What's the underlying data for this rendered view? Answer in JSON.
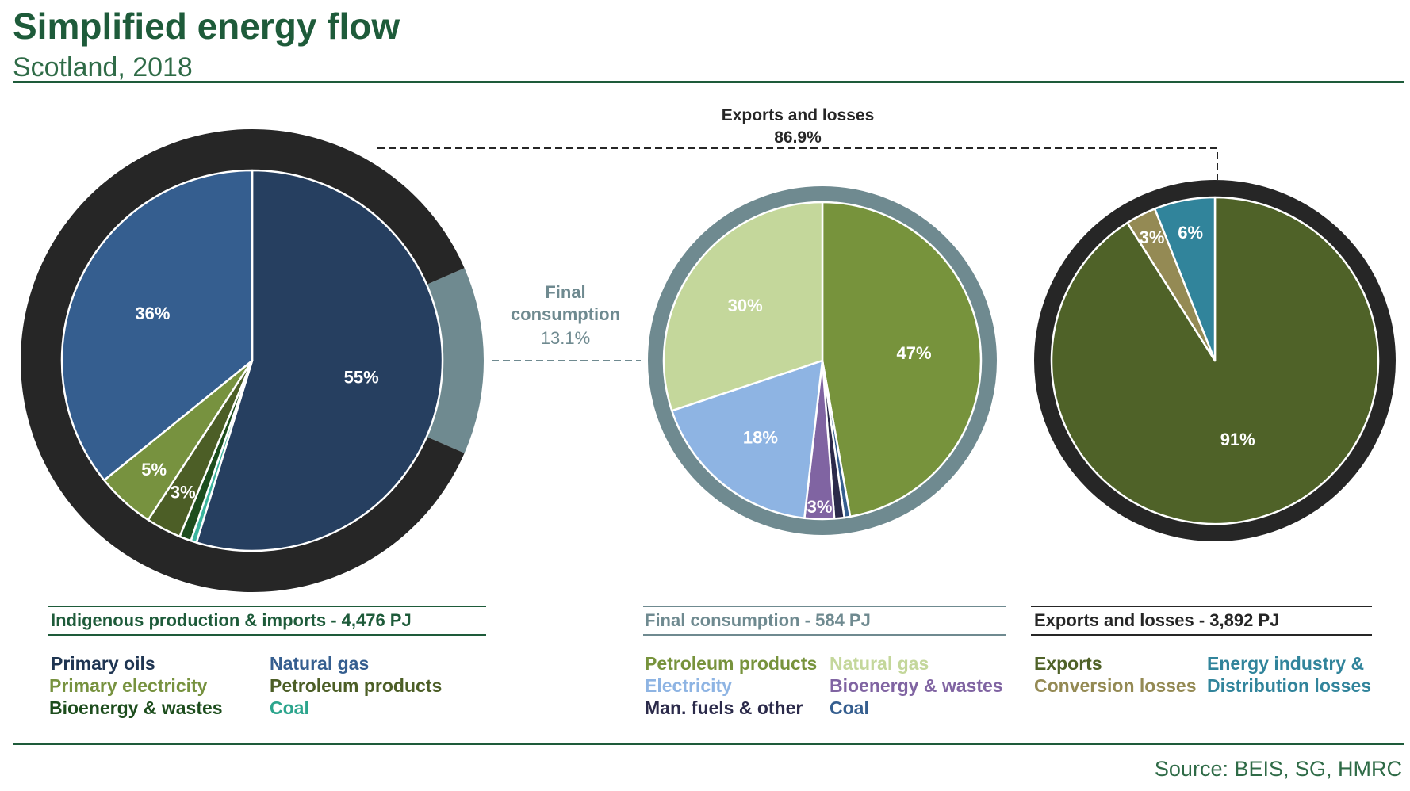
{
  "header": {
    "title": "Simplified energy flow",
    "subtitle": "Scotland, 2018",
    "source": "Source: BEIS, SG, HMRC"
  },
  "chart_data": [
    {
      "type": "pie",
      "title": "Indigenous production & imports - 4,476 PJ",
      "slices": [
        {
          "label": "Natural gas",
          "value": 55,
          "display": "55%",
          "color": "#263f60"
        },
        {
          "label": "Coal",
          "value": 0.5,
          "display": "",
          "color": "#3bb59e"
        },
        {
          "label": "Bioenergy & wastes",
          "value": 1,
          "display": "",
          "color": "#1d4d1d"
        },
        {
          "label": "Petroleum products",
          "value": 3,
          "display": "3%",
          "color": "#4c5e26"
        },
        {
          "label": "Primary electricity",
          "value": 5,
          "display": "5%",
          "color": "#77923f"
        },
        {
          "label": "Primary oils",
          "value": 36,
          "display": "36%",
          "color": "#355e8f"
        }
      ],
      "outer_ring": [
        {
          "label": "Final consumption",
          "value": 13.1,
          "color": "#6f8a90"
        },
        {
          "label": "Exports and losses",
          "value": 86.9,
          "color": "#262626"
        }
      ],
      "legend": [
        {
          "label": "Primary oils",
          "color": "#1f3552"
        },
        {
          "label": "Natural gas",
          "color": "#355e8f"
        },
        {
          "label": "Primary electricity",
          "color": "#77923f"
        },
        {
          "label": "Petroleum products",
          "color": "#4c5e26"
        },
        {
          "label": "Bioenergy & wastes",
          "color": "#1d4d1d"
        },
        {
          "label": "Coal",
          "color": "#2ca58d"
        }
      ]
    },
    {
      "type": "pie",
      "title": "Final consumption - 584 PJ",
      "slices": [
        {
          "label": "Petroleum products",
          "value": 47,
          "display": "47%",
          "color": "#77933c"
        },
        {
          "label": "Coal",
          "value": 0.6,
          "display": "",
          "color": "#355e8f"
        },
        {
          "label": "Man. fuels & other",
          "value": 1,
          "display": "",
          "color": "#2b2a4a"
        },
        {
          "label": "Bioenergy & wastes",
          "value": 3,
          "display": "3%",
          "color": "#8064a2"
        },
        {
          "label": "Electricity",
          "value": 18,
          "display": "18%",
          "color": "#8eb4e3"
        },
        {
          "label": "Natural gas",
          "value": 30,
          "display": "30%",
          "color": "#c4d79b"
        }
      ],
      "legend": [
        {
          "label": "Petroleum products",
          "color": "#77933c"
        },
        {
          "label": "Natural gas",
          "color": "#c4d79b"
        },
        {
          "label": "Electricity",
          "color": "#8eb4e3"
        },
        {
          "label": "Bioenergy & wastes",
          "color": "#8064a2"
        },
        {
          "label": "Man. fuels & other",
          "color": "#2b2a4a"
        },
        {
          "label": "Coal",
          "color": "#355e8f"
        }
      ]
    },
    {
      "type": "pie",
      "title": "Exports and losses - 3,892 PJ",
      "slices": [
        {
          "label": "Exports",
          "value": 91,
          "display": "91%",
          "color": "#4f6228"
        },
        {
          "label": "Conversion losses",
          "value": 3,
          "display": "3%",
          "color": "#948a54"
        },
        {
          "label": "Energy industry & Distribution losses",
          "value": 6,
          "display": "6%",
          "color": "#31849b"
        }
      ],
      "legend": [
        {
          "label": "Exports",
          "color": "#4f6228"
        },
        {
          "label": "Energy industry &",
          "color": "#31849b"
        },
        {
          "label": "Conversion losses",
          "color": "#948a54"
        },
        {
          "label": "Distribution losses",
          "color": "#31849b"
        }
      ]
    }
  ],
  "annotations": {
    "exports_label": "Exports and losses",
    "exports_value": "86.9%",
    "final_label_1": "Final",
    "final_label_2": "consumption",
    "final_value": "13.1%"
  }
}
